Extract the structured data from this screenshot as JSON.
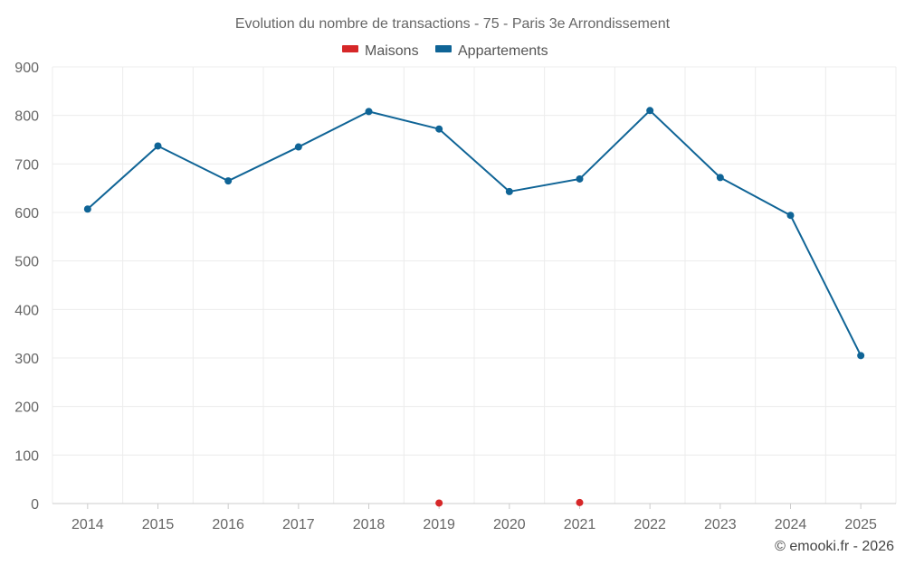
{
  "chart_data": {
    "type": "line",
    "title": "Evolution du nombre de transactions - 75 - Paris 3e Arrondissement",
    "categories": [
      "2014",
      "2015",
      "2016",
      "2017",
      "2018",
      "2019",
      "2020",
      "2021",
      "2022",
      "2023",
      "2024",
      "2025"
    ],
    "ylim": [
      0,
      900
    ],
    "yticks": [
      0,
      100,
      200,
      300,
      400,
      500,
      600,
      700,
      800,
      900
    ],
    "grid": true,
    "legend_position": "top-center",
    "series": [
      {
        "name": "Maisons",
        "color": "#d62728",
        "values": [
          null,
          null,
          null,
          null,
          null,
          1,
          null,
          2,
          null,
          null,
          null,
          null
        ]
      },
      {
        "name": "Appartements",
        "color": "#0f6496",
        "values": [
          607,
          737,
          665,
          735,
          808,
          772,
          643,
          669,
          810,
          672,
          594,
          305
        ]
      }
    ]
  },
  "credit": "© emooki.fr - 2026"
}
